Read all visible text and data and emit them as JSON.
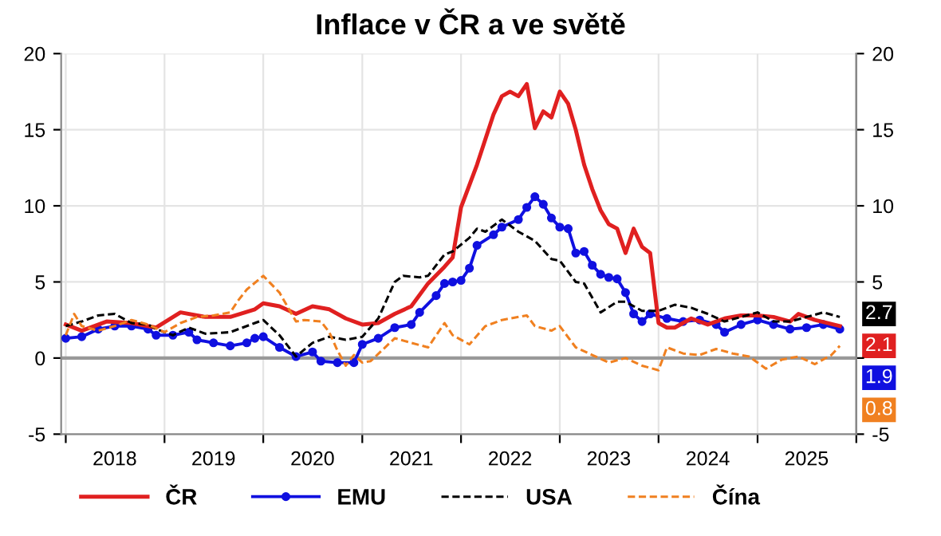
{
  "chart_data": {
    "type": "line",
    "title": "Inflace v ČR a ve světě",
    "xlim": [
      "2017-12-15",
      "2026-01-01"
    ],
    "xticks": [
      {
        "value": "2018-01-01",
        "label": null
      },
      {
        "value": "2018-07-01",
        "label": "2018"
      },
      {
        "value": "2019-01-01",
        "label": null
      },
      {
        "value": "2019-07-01",
        "label": "2019"
      },
      {
        "value": "2020-01-01",
        "label": null
      },
      {
        "value": "2020-07-01",
        "label": "2020"
      },
      {
        "value": "2021-01-01",
        "label": null
      },
      {
        "value": "2021-07-01",
        "label": "2021"
      },
      {
        "value": "2022-01-01",
        "label": null
      },
      {
        "value": "2022-07-01",
        "label": "2022"
      },
      {
        "value": "2023-01-01",
        "label": null
      },
      {
        "value": "2023-07-01",
        "label": "2023"
      },
      {
        "value": "2024-01-01",
        "label": null
      },
      {
        "value": "2024-07-01",
        "label": "2024"
      },
      {
        "value": "2025-01-01",
        "label": null
      },
      {
        "value": "2025-07-01",
        "label": "2025"
      },
      {
        "value": "2026-01-01",
        "label": null
      }
    ],
    "ylim": [
      -5,
      20
    ],
    "yticks": [
      -5,
      0,
      5,
      10,
      15,
      20
    ],
    "y2lim": [
      -5,
      20
    ],
    "y2ticks": [
      -5,
      {
        "value": 0,
        "label": null
      },
      5,
      10,
      15,
      20
    ],
    "grid": true,
    "legend": "bottom",
    "ref_lines": [
      {
        "axis": "y",
        "value": 0,
        "color": "#999999"
      }
    ],
    "series": [
      {
        "name": "ČR",
        "color": "#e02020",
        "line_style": "solid",
        "marker": "none",
        "x": [
          "2018-01",
          "2018-03",
          "2018-06",
          "2018-09",
          "2018-12",
          "2019-03",
          "2019-06",
          "2019-09",
          "2019-12",
          "2020-01",
          "2020-03",
          "2020-05",
          "2020-07",
          "2020-09",
          "2020-11",
          "2021-01",
          "2021-03",
          "2021-05",
          "2021-07",
          "2021-09",
          "2021-11",
          "2021-12",
          "2022-01",
          "2022-03",
          "2022-05",
          "2022-06",
          "2022-07",
          "2022-08",
          "2022-09",
          "2022-10",
          "2022-11",
          "2022-12",
          "2023-01",
          "2023-02",
          "2023-03",
          "2023-04",
          "2023-05",
          "2023-06",
          "2023-07",
          "2023-08",
          "2023-09",
          "2023-10",
          "2023-11",
          "2023-12",
          "2024-01",
          "2024-02",
          "2024-03",
          "2024-05",
          "2024-07",
          "2024-09",
          "2024-11",
          "2025-01",
          "2025-03",
          "2025-05",
          "2025-06",
          "2025-08",
          "2025-11"
        ],
        "values": [
          2.2,
          1.8,
          2.4,
          2.3,
          2.0,
          3.0,
          2.7,
          2.7,
          3.2,
          3.6,
          3.4,
          2.9,
          3.4,
          3.2,
          2.6,
          2.2,
          2.3,
          2.9,
          3.4,
          4.9,
          6.0,
          6.6,
          9.9,
          12.7,
          16.0,
          17.2,
          17.5,
          17.2,
          18.0,
          15.1,
          16.2,
          15.8,
          17.5,
          16.7,
          15.0,
          12.7,
          11.1,
          9.7,
          8.8,
          8.5,
          6.9,
          8.5,
          7.3,
          6.9,
          2.3,
          2.0,
          2.0,
          2.6,
          2.2,
          2.6,
          2.8,
          2.8,
          2.7,
          2.4,
          2.9,
          2.5,
          2.1
        ],
        "value_labels": [
          null,
          null,
          null,
          null,
          null,
          null,
          null,
          null,
          null,
          null,
          null,
          null,
          null,
          null,
          null,
          null,
          null,
          null,
          null,
          null,
          null,
          null,
          null,
          null,
          null,
          null,
          null,
          null,
          null,
          null,
          null,
          null,
          null,
          null,
          null,
          null,
          null,
          null,
          null,
          null,
          null,
          null,
          null,
          null,
          null,
          null,
          null,
          null,
          null,
          null,
          null,
          null,
          null,
          null,
          null,
          null,
          "2.1"
        ]
      },
      {
        "name": "EMU",
        "color": "#1010e0",
        "line_style": "solid",
        "marker": "circle",
        "x": [
          "2018-01",
          "2018-03",
          "2018-05",
          "2018-07",
          "2018-09",
          "2018-11",
          "2018-12",
          "2019-02",
          "2019-04",
          "2019-05",
          "2019-07",
          "2019-09",
          "2019-11",
          "2019-12",
          "2020-01",
          "2020-03",
          "2020-05",
          "2020-07",
          "2020-08",
          "2020-10",
          "2020-12",
          "2021-01",
          "2021-03",
          "2021-05",
          "2021-07",
          "2021-08",
          "2021-10",
          "2021-11",
          "2021-12",
          "2022-01",
          "2022-02",
          "2022-03",
          "2022-05",
          "2022-06",
          "2022-08",
          "2022-09",
          "2022-10",
          "2022-11",
          "2022-12",
          "2023-01",
          "2023-02",
          "2023-03",
          "2023-04",
          "2023-05",
          "2023-06",
          "2023-07",
          "2023-08",
          "2023-09",
          "2023-10",
          "2023-11",
          "2023-12",
          "2024-02",
          "2024-04",
          "2024-06",
          "2024-08",
          "2024-09",
          "2024-11",
          "2025-01",
          "2025-03",
          "2025-05",
          "2025-07",
          "2025-09",
          "2025-11"
        ],
        "values": [
          1.3,
          1.4,
          1.9,
          2.1,
          2.1,
          1.9,
          1.5,
          1.5,
          1.7,
          1.2,
          1.0,
          0.8,
          1.0,
          1.3,
          1.4,
          0.7,
          0.1,
          0.4,
          -0.2,
          -0.3,
          -0.3,
          0.9,
          1.3,
          2.0,
          2.2,
          3.0,
          4.1,
          4.9,
          5.0,
          5.1,
          5.9,
          7.4,
          8.1,
          8.6,
          9.1,
          9.9,
          10.6,
          10.1,
          9.2,
          8.6,
          8.5,
          6.9,
          7.0,
          6.1,
          5.5,
          5.3,
          5.2,
          4.3,
          2.9,
          2.4,
          2.9,
          2.6,
          2.4,
          2.5,
          2.2,
          1.7,
          2.2,
          2.5,
          2.2,
          1.9,
          2.0,
          2.2,
          1.9
        ],
        "value_labels": [
          null,
          null,
          null,
          null,
          null,
          null,
          null,
          null,
          null,
          null,
          null,
          null,
          null,
          null,
          null,
          null,
          null,
          null,
          null,
          null,
          null,
          null,
          null,
          null,
          null,
          null,
          null,
          null,
          null,
          null,
          null,
          null,
          null,
          null,
          null,
          null,
          null,
          null,
          null,
          null,
          null,
          null,
          null,
          null,
          null,
          null,
          null,
          null,
          null,
          null,
          null,
          null,
          null,
          null,
          null,
          null,
          null,
          null,
          null,
          null,
          null,
          null,
          "1.9"
        ]
      },
      {
        "name": "USA",
        "color": "#000000",
        "line_style": "dashed",
        "marker": "none",
        "x": [
          "2018-01",
          "2018-03",
          "2018-05",
          "2018-07",
          "2018-09",
          "2018-11",
          "2018-12",
          "2019-02",
          "2019-04",
          "2019-06",
          "2019-09",
          "2019-12",
          "2020-01",
          "2020-03",
          "2020-05",
          "2020-07",
          "2020-09",
          "2020-11",
          "2021-01",
          "2021-03",
          "2021-05",
          "2021-06",
          "2021-08",
          "2021-09",
          "2021-11",
          "2021-12",
          "2022-02",
          "2022-03",
          "2022-04",
          "2022-06",
          "2022-08",
          "2022-10",
          "2022-12",
          "2023-01",
          "2023-03",
          "2023-04",
          "2023-06",
          "2023-08",
          "2023-09",
          "2023-11",
          "2024-01",
          "2024-03",
          "2024-05",
          "2024-07",
          "2024-09",
          "2024-11",
          "2025-01",
          "2025-03",
          "2025-05",
          "2025-07",
          "2025-09",
          "2025-11"
        ],
        "values": [
          2.1,
          2.4,
          2.8,
          2.9,
          2.3,
          2.2,
          1.9,
          1.5,
          2.0,
          1.6,
          1.7,
          2.3,
          2.5,
          1.5,
          0.1,
          1.0,
          1.4,
          1.2,
          1.4,
          2.6,
          5.0,
          5.4,
          5.3,
          5.4,
          6.8,
          7.0,
          7.9,
          8.5,
          8.3,
          9.1,
          8.3,
          7.7,
          6.5,
          6.4,
          5.0,
          4.9,
          3.0,
          3.7,
          3.7,
          3.1,
          3.1,
          3.5,
          3.3,
          2.9,
          2.4,
          2.7,
          3.0,
          2.4,
          2.4,
          2.7,
          3.0,
          2.7
        ],
        "value_labels": [
          null,
          null,
          null,
          null,
          null,
          null,
          null,
          null,
          null,
          null,
          null,
          null,
          null,
          null,
          null,
          null,
          null,
          null,
          null,
          null,
          null,
          null,
          null,
          null,
          null,
          null,
          null,
          null,
          null,
          null,
          null,
          null,
          null,
          null,
          null,
          null,
          null,
          null,
          null,
          null,
          null,
          null,
          null,
          null,
          null,
          null,
          null,
          null,
          null,
          null,
          null,
          "2.7"
        ]
      },
      {
        "name": "Čína",
        "color": "#f08020",
        "line_style": "dashed",
        "marker": "none",
        "x": [
          "2018-01",
          "2018-02",
          "2018-03",
          "2018-05",
          "2018-07",
          "2018-09",
          "2018-11",
          "2019-01",
          "2019-03",
          "2019-05",
          "2019-07",
          "2019-09",
          "2019-10",
          "2019-11",
          "2020-01",
          "2020-03",
          "2020-05",
          "2020-06",
          "2020-08",
          "2020-09",
          "2020-10",
          "2020-11",
          "2020-12",
          "2021-01",
          "2021-02",
          "2021-05",
          "2021-07",
          "2021-09",
          "2021-11",
          "2021-12",
          "2022-02",
          "2022-04",
          "2022-06",
          "2022-09",
          "2022-10",
          "2022-12",
          "2023-01",
          "2023-03",
          "2023-05",
          "2023-07",
          "2023-09",
          "2023-11",
          "2024-01",
          "2024-02",
          "2024-04",
          "2024-06",
          "2024-08",
          "2024-10",
          "2024-12",
          "2025-02",
          "2025-04",
          "2025-06",
          "2025-08",
          "2025-10",
          "2025-11"
        ],
        "values": [
          1.5,
          2.9,
          2.1,
          1.8,
          2.1,
          2.5,
          2.2,
          1.7,
          2.3,
          2.7,
          2.8,
          3.0,
          3.8,
          4.5,
          5.4,
          4.3,
          2.4,
          2.5,
          2.4,
          1.7,
          0.5,
          -0.5,
          0.2,
          -0.3,
          -0.2,
          1.3,
          1.0,
          0.7,
          2.3,
          1.5,
          0.9,
          2.1,
          2.5,
          2.8,
          2.1,
          1.8,
          2.1,
          0.7,
          0.2,
          -0.3,
          0.0,
          -0.5,
          -0.8,
          0.7,
          0.3,
          0.2,
          0.6,
          0.3,
          0.1,
          -0.7,
          -0.1,
          0.1,
          -0.4,
          0.2,
          0.8
        ],
        "value_labels": [
          null,
          null,
          null,
          null,
          null,
          null,
          null,
          null,
          null,
          null,
          null,
          null,
          null,
          null,
          null,
          null,
          null,
          null,
          null,
          null,
          null,
          null,
          null,
          null,
          null,
          null,
          null,
          null,
          null,
          null,
          null,
          null,
          null,
          null,
          null,
          null,
          null,
          null,
          null,
          null,
          null,
          null,
          null,
          null,
          null,
          null,
          null,
          null,
          null,
          null,
          null,
          null,
          null,
          null,
          "0.8"
        ]
      }
    ]
  }
}
